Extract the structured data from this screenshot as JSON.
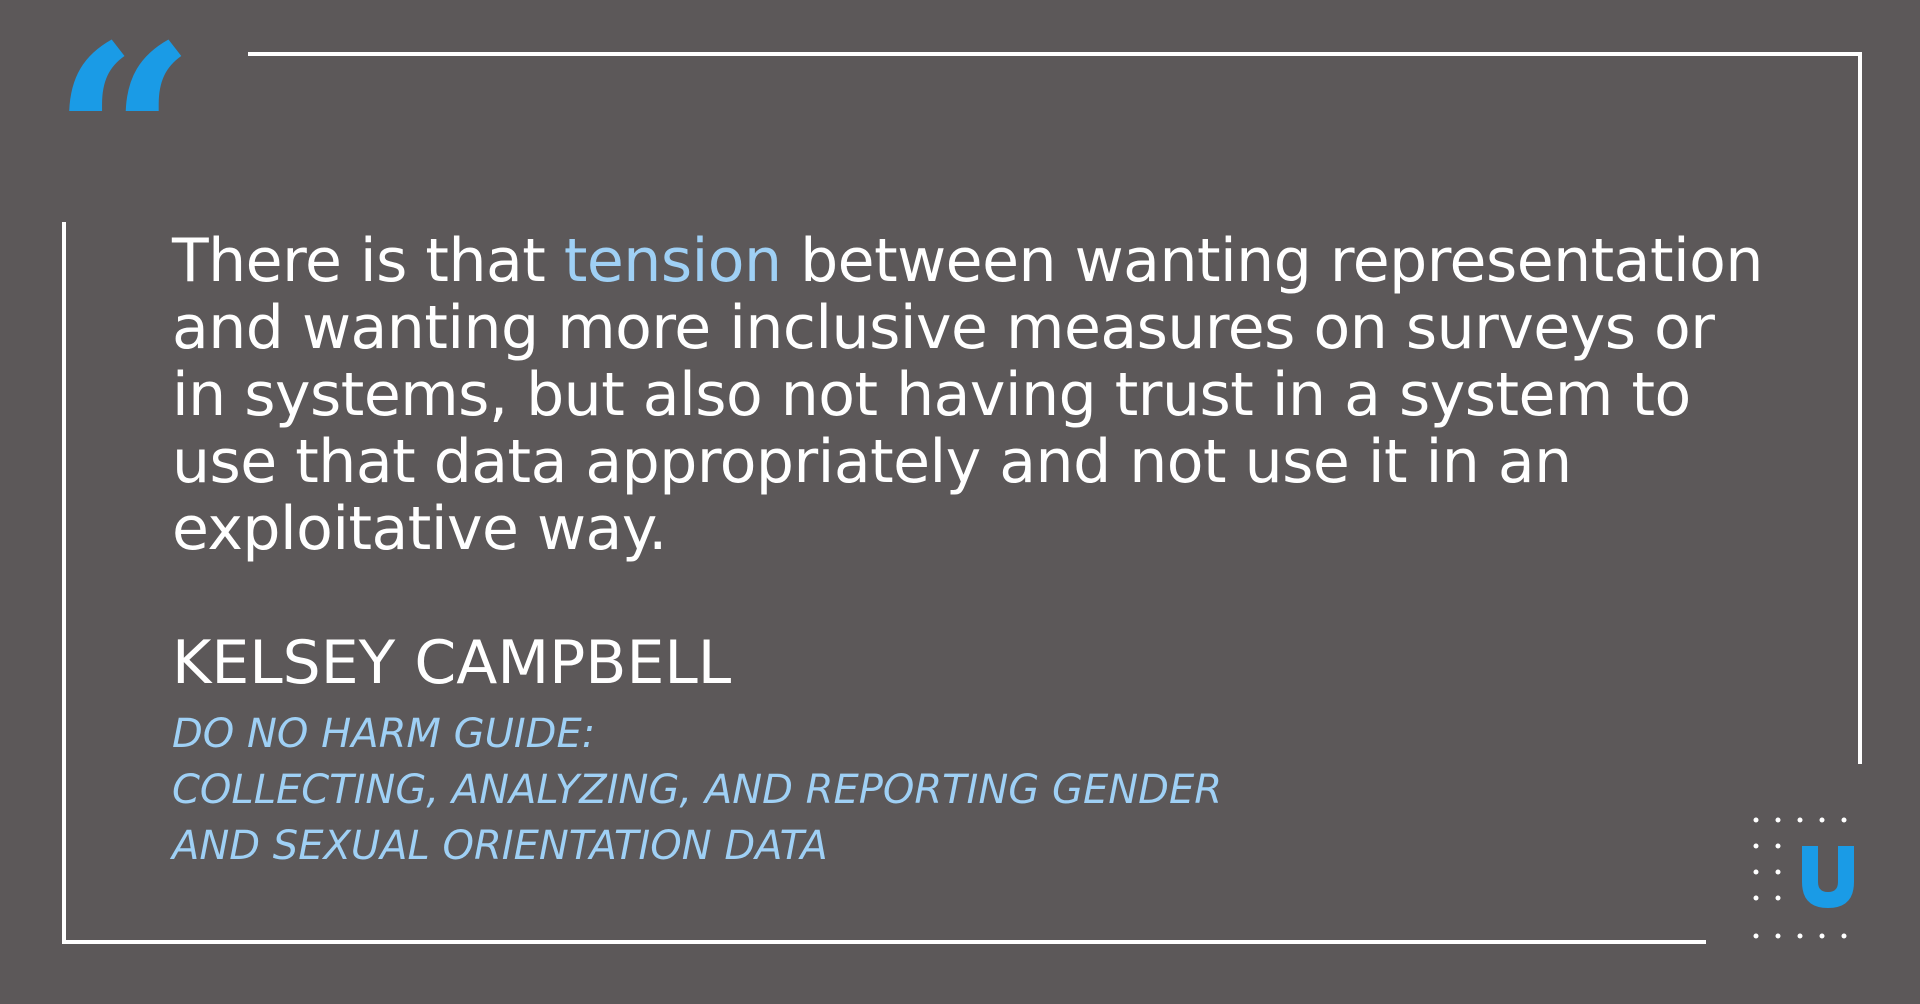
{
  "quote": {
    "before": "There is that ",
    "highlight": "tension",
    "after": " between wanting representation and wanting more inclusive measures on surveys or in systems, but also not having trust in a system to use that data appropriately and not use it in an exploitative way.",
    "open_mark": "“"
  },
  "author": {
    "name": "KELSEY CAMPBELL"
  },
  "source": {
    "lines": [
      "DO NO HARM GUIDE:",
      "COLLECTING, ANALYZING, AND REPORTING GENDER",
      "AND SEXUAL ORIENTATION DATA"
    ]
  },
  "logo": {
    "letter": "U",
    "icon": "urban-institute-logo"
  },
  "colors": {
    "background": "#5c5859",
    "accent": "#1a9be6",
    "highlight": "#9fd0f5",
    "text": "#ffffff"
  }
}
